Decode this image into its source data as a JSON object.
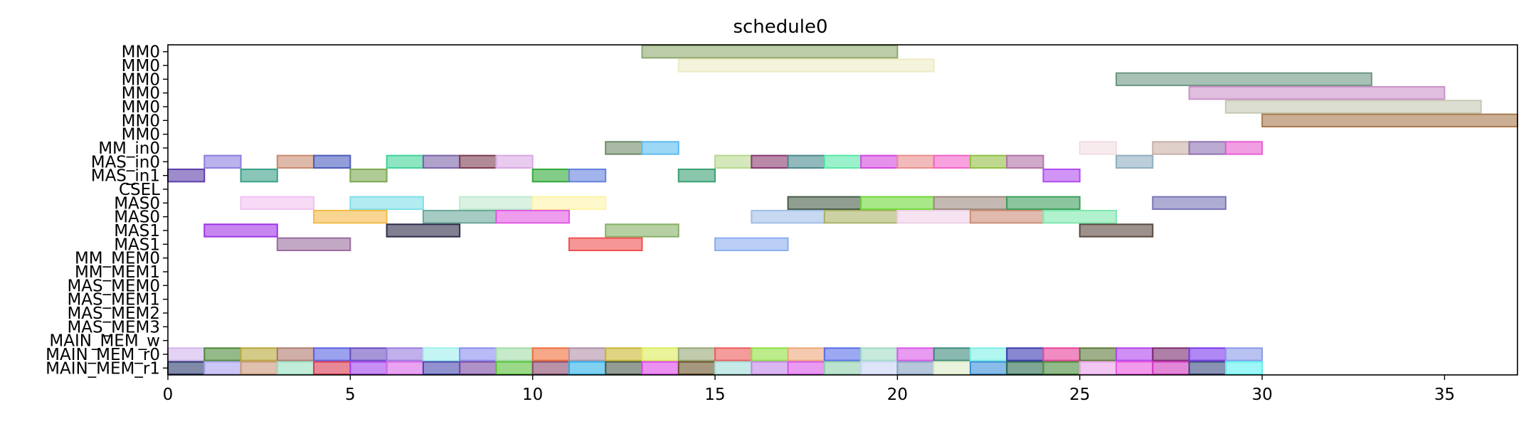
{
  "chart_data": {
    "type": "gantt",
    "title": "schedule0",
    "xlabel": "",
    "ylabel": "",
    "xlim": [
      0,
      37
    ],
    "xticks": [
      0,
      5,
      10,
      15,
      20,
      25,
      30,
      35
    ],
    "grid": false,
    "legend": "none",
    "rows": [
      "MM0",
      "MM0",
      "MM0",
      "MM0",
      "MM0",
      "MM0",
      "MM0",
      "MM_in0",
      "MAS_in0",
      "MAS_in1",
      "CSEL",
      "MAS0",
      "MAS0",
      "MAS1",
      "MAS1",
      "MM_MEM0",
      "MM_MEM1",
      "MAS_MEM0",
      "MAS_MEM1",
      "MAS_MEM2",
      "MAS_MEM3",
      "MAIN_MEM_w",
      "MAIN_MEM_r0",
      "MAIN_MEM_r1"
    ],
    "bars": [
      {
        "row": 0,
        "start": 13,
        "end": 20,
        "color": "#8fa86e"
      },
      {
        "row": 1,
        "start": 14,
        "end": 21,
        "color": "#ecebc4"
      },
      {
        "row": 2,
        "start": 26,
        "end": 33,
        "color": "#6e9783"
      },
      {
        "row": 3,
        "start": 28,
        "end": 35,
        "color": "#c992c9"
      },
      {
        "row": 4,
        "start": 29,
        "end": 36,
        "color": "#c5c8b2"
      },
      {
        "row": 5,
        "start": 30,
        "end": 37,
        "color": "#a87a4e"
      },
      {
        "row": 7,
        "start": 12,
        "end": 13,
        "color": "#6f8a68"
      },
      {
        "row": 7,
        "start": 13,
        "end": 14,
        "color": "#5bbcf0"
      },
      {
        "row": 7,
        "start": 25,
        "end": 26,
        "color": "#f3dde3"
      },
      {
        "row": 7,
        "start": 27,
        "end": 28,
        "color": "#c9b0a6"
      },
      {
        "row": 7,
        "start": 28,
        "end": 29,
        "color": "#8e72b2"
      },
      {
        "row": 7,
        "start": 29,
        "end": 30,
        "color": "#ea5ed0"
      },
      {
        "row": 8,
        "start": 1,
        "end": 2,
        "color": "#8a7ee0"
      },
      {
        "row": 8,
        "start": 3,
        "end": 4,
        "color": "#c98a70"
      },
      {
        "row": 8,
        "start": 4,
        "end": 5,
        "color": "#4b5cbc"
      },
      {
        "row": 8,
        "start": 6,
        "end": 7,
        "color": "#42d39a"
      },
      {
        "row": 8,
        "start": 7,
        "end": 8,
        "color": "#7a64a8"
      },
      {
        "row": 8,
        "start": 8,
        "end": 9,
        "color": "#7c3c52"
      },
      {
        "row": 8,
        "start": 9,
        "end": 10,
        "color": "#d8a8e4"
      },
      {
        "row": 8,
        "start": 15,
        "end": 16,
        "color": "#b7d98e"
      },
      {
        "row": 8,
        "start": 16,
        "end": 17,
        "color": "#8a3a72"
      },
      {
        "row": 8,
        "start": 17,
        "end": 18,
        "color": "#4a8a8e"
      },
      {
        "row": 8,
        "start": 18,
        "end": 19,
        "color": "#58e8a8"
      },
      {
        "row": 8,
        "start": 19,
        "end": 20,
        "color": "#d448de"
      },
      {
        "row": 8,
        "start": 20,
        "end": 21,
        "color": "#e88e8e"
      },
      {
        "row": 8,
        "start": 21,
        "end": 22,
        "color": "#f264c8"
      },
      {
        "row": 8,
        "start": 22,
        "end": 23,
        "color": "#92c044"
      },
      {
        "row": 8,
        "start": 23,
        "end": 24,
        "color": "#b072a6"
      },
      {
        "row": 8,
        "start": 26,
        "end": 27,
        "color": "#90aec0"
      },
      {
        "row": 9,
        "start": 0,
        "end": 1,
        "color": "#5c3eaa"
      },
      {
        "row": 9,
        "start": 2,
        "end": 3,
        "color": "#3aa088"
      },
      {
        "row": 9,
        "start": 5,
        "end": 6,
        "color": "#7aa850"
      },
      {
        "row": 9,
        "start": 10,
        "end": 11,
        "color": "#30aa38"
      },
      {
        "row": 9,
        "start": 11,
        "end": 12,
        "color": "#6482de"
      },
      {
        "row": 9,
        "start": 14,
        "end": 15,
        "color": "#3aa074"
      },
      {
        "row": 9,
        "start": 24,
        "end": 25,
        "color": "#b24cf2"
      },
      {
        "row": 11,
        "start": 2,
        "end": 4,
        "color": "#f0c2f0"
      },
      {
        "row": 11,
        "start": 5,
        "end": 7,
        "color": "#7ee0e8"
      },
      {
        "row": 11,
        "start": 8,
        "end": 10,
        "color": "#bfeace"
      },
      {
        "row": 11,
        "start": 10,
        "end": 12,
        "color": "#fff4a8"
      },
      {
        "row": 11,
        "start": 17,
        "end": 19,
        "color": "#465e48"
      },
      {
        "row": 11,
        "start": 19,
        "end": 21,
        "color": "#70d838"
      },
      {
        "row": 11,
        "start": 21,
        "end": 23,
        "color": "#9c8a7e"
      },
      {
        "row": 11,
        "start": 23,
        "end": 25,
        "color": "#3e9e5c"
      },
      {
        "row": 11,
        "start": 27,
        "end": 29,
        "color": "#7a74b8"
      },
      {
        "row": 12,
        "start": 4,
        "end": 6,
        "color": "#f4ba4a"
      },
      {
        "row": 12,
        "start": 7,
        "end": 9,
        "color": "#6aa89a"
      },
      {
        "row": 12,
        "start": 9,
        "end": 11,
        "color": "#e25ae2"
      },
      {
        "row": 12,
        "start": 16,
        "end": 18,
        "color": "#a2bee8"
      },
      {
        "row": 12,
        "start": 18,
        "end": 20,
        "color": "#aab468"
      },
      {
        "row": 12,
        "start": 20,
        "end": 22,
        "color": "#eed0e8"
      },
      {
        "row": 12,
        "start": 22,
        "end": 24,
        "color": "#cc8e76"
      },
      {
        "row": 12,
        "start": 24,
        "end": 26,
        "color": "#7ee8ae"
      },
      {
        "row": 13,
        "start": 1,
        "end": 3,
        "color": "#a034e6"
      },
      {
        "row": 13,
        "start": 6,
        "end": 8,
        "color": "#2c2c4a"
      },
      {
        "row": 13,
        "start": 12,
        "end": 14,
        "color": "#86b068"
      },
      {
        "row": 13,
        "start": 25,
        "end": 27,
        "color": "#5a4a3e"
      },
      {
        "row": 14,
        "start": 3,
        "end": 5,
        "color": "#9a6e9e"
      },
      {
        "row": 14,
        "start": 11,
        "end": 13,
        "color": "#f05252"
      },
      {
        "row": 14,
        "start": 15,
        "end": 17,
        "color": "#8caef0"
      },
      {
        "row": 22,
        "start": 0,
        "end": 1,
        "color": "#d2b4ec"
      },
      {
        "row": 22,
        "start": 1,
        "end": 2,
        "color": "#4e8a3a"
      },
      {
        "row": 22,
        "start": 2,
        "end": 3,
        "color": "#b8a83a"
      },
      {
        "row": 22,
        "start": 3,
        "end": 4,
        "color": "#b07a70"
      },
      {
        "row": 22,
        "start": 4,
        "end": 5,
        "color": "#5a62e2"
      },
      {
        "row": 22,
        "start": 5,
        "end": 6,
        "color": "#6a4ec0"
      },
      {
        "row": 22,
        "start": 6,
        "end": 7,
        "color": "#9a7ce0"
      },
      {
        "row": 22,
        "start": 7,
        "end": 8,
        "color": "#9ef0ec"
      },
      {
        "row": 22,
        "start": 8,
        "end": 9,
        "color": "#8a8ef0"
      },
      {
        "row": 22,
        "start": 9,
        "end": 10,
        "color": "#a2dca8"
      },
      {
        "row": 22,
        "start": 10,
        "end": 11,
        "color": "#f06e38"
      },
      {
        "row": 22,
        "start": 11,
        "end": 12,
        "color": "#b090a8"
      },
      {
        "row": 22,
        "start": 12,
        "end": 13,
        "color": "#c8b830"
      },
      {
        "row": 22,
        "start": 13,
        "end": 14,
        "color": "#dcec5a"
      },
      {
        "row": 22,
        "start": 14,
        "end": 15,
        "color": "#96a878"
      },
      {
        "row": 22,
        "start": 15,
        "end": 16,
        "color": "#ec5a5a"
      },
      {
        "row": 22,
        "start": 16,
        "end": 17,
        "color": "#90e040"
      },
      {
        "row": 22,
        "start": 17,
        "end": 18,
        "color": "#eca87a"
      },
      {
        "row": 22,
        "start": 18,
        "end": 19,
        "color": "#5a6ee8"
      },
      {
        "row": 22,
        "start": 19,
        "end": 20,
        "color": "#a2dcc4"
      },
      {
        "row": 22,
        "start": 20,
        "end": 21,
        "color": "#d858e8"
      },
      {
        "row": 22,
        "start": 21,
        "end": 22,
        "color": "#3a8a7a"
      },
      {
        "row": 22,
        "start": 22,
        "end": 23,
        "color": "#7ef0e6"
      },
      {
        "row": 22,
        "start": 23,
        "end": 24,
        "color": "#3838b0"
      },
      {
        "row": 22,
        "start": 24,
        "end": 25,
        "color": "#e8409a"
      },
      {
        "row": 22,
        "start": 25,
        "end": 26,
        "color": "#5e7a3a"
      },
      {
        "row": 22,
        "start": 26,
        "end": 27,
        "color": "#b044ec"
      },
      {
        "row": 22,
        "start": 27,
        "end": 28,
        "color": "#7a2a6e"
      },
      {
        "row": 22,
        "start": 28,
        "end": 29,
        "color": "#7a38ec"
      },
      {
        "row": 22,
        "start": 29,
        "end": 30,
        "color": "#8a9ae8"
      },
      {
        "row": 23,
        "start": 0,
        "end": 1,
        "color": "#2a3a6e"
      },
      {
        "row": 23,
        "start": 1,
        "end": 2,
        "color": "#a8a2ec"
      },
      {
        "row": 23,
        "start": 2,
        "end": 3,
        "color": "#cc9678"
      },
      {
        "row": 23,
        "start": 3,
        "end": 4,
        "color": "#98e0c0"
      },
      {
        "row": 23,
        "start": 4,
        "end": 5,
        "color": "#da3a52"
      },
      {
        "row": 23,
        "start": 5,
        "end": 6,
        "color": "#a244ec"
      },
      {
        "row": 23,
        "start": 6,
        "end": 7,
        "color": "#d868e6"
      },
      {
        "row": 23,
        "start": 7,
        "end": 8,
        "color": "#4a4ab0"
      },
      {
        "row": 23,
        "start": 8,
        "end": 9,
        "color": "#7a4aa2"
      },
      {
        "row": 23,
        "start": 9,
        "end": 10,
        "color": "#58c03a"
      },
      {
        "row": 23,
        "start": 10,
        "end": 11,
        "color": "#8a4a6e"
      },
      {
        "row": 23,
        "start": 11,
        "end": 12,
        "color": "#2ab0e8"
      },
      {
        "row": 23,
        "start": 12,
        "end": 13,
        "color": "#4a5a4a"
      },
      {
        "row": 23,
        "start": 13,
        "end": 14,
        "color": "#dc48e8"
      },
      {
        "row": 23,
        "start": 14,
        "end": 15,
        "color": "#6a542a"
      },
      {
        "row": 23,
        "start": 15,
        "end": 16,
        "color": "#a0dcd8"
      },
      {
        "row": 23,
        "start": 16,
        "end": 17,
        "color": "#c088e8"
      },
      {
        "row": 23,
        "start": 17,
        "end": 18,
        "color": "#d858e6"
      },
      {
        "row": 23,
        "start": 18,
        "end": 19,
        "color": "#90d0ac"
      },
      {
        "row": 23,
        "start": 19,
        "end": 20,
        "color": "#cad4f4"
      },
      {
        "row": 23,
        "start": 20,
        "end": 21,
        "color": "#86a2c4"
      },
      {
        "row": 23,
        "start": 21,
        "end": 22,
        "color": "#dcebc6"
      },
      {
        "row": 23,
        "start": 22,
        "end": 23,
        "color": "#3a90d8"
      },
      {
        "row": 23,
        "start": 23,
        "end": 24,
        "color": "#2a6a4e"
      },
      {
        "row": 23,
        "start": 24,
        "end": 25,
        "color": "#4a8a3a"
      },
      {
        "row": 23,
        "start": 25,
        "end": 26,
        "color": "#e8a2e8"
      },
      {
        "row": 23,
        "start": 26,
        "end": 27,
        "color": "#ea58e0"
      },
      {
        "row": 23,
        "start": 27,
        "end": 28,
        "color": "#d038c0"
      },
      {
        "row": 23,
        "start": 28,
        "end": 29,
        "color": "#3a4a7e"
      },
      {
        "row": 23,
        "start": 29,
        "end": 30,
        "color": "#5ef0f0"
      }
    ]
  }
}
